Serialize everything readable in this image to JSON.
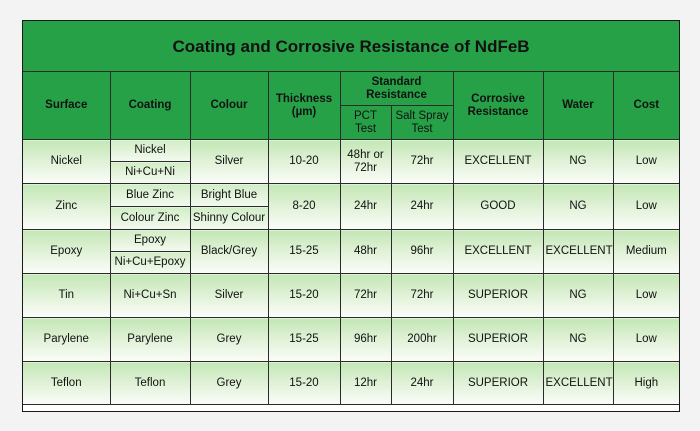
{
  "title": "Coating and Corrosive Resistance of NdFeB",
  "headers": {
    "surface": "Surface",
    "coating": "Coating",
    "colour": "Colour",
    "thickness": "Thickness (µm)",
    "standard_resistance": "Standard Resistance",
    "pct_test": "PCT Test",
    "salt_spray": "Salt Spray Test",
    "corrosive_resistance": "Corrosive Resistance",
    "water": "Water",
    "cost": "Cost"
  },
  "rows": {
    "nickel": {
      "surface": "Nickel",
      "coating_a": "Nickel",
      "coating_b": "Ni+Cu+Ni",
      "colour": "Silver",
      "thickness": "10-20",
      "pct": "48hr or 72hr",
      "salt": "72hr",
      "corrosive": "EXCELLENT",
      "water": "NG",
      "cost": "Low"
    },
    "zinc": {
      "surface": "Zinc",
      "coating_a": "Blue Zinc",
      "coating_b": "Colour Zinc",
      "colour_a": "Bright Blue",
      "colour_b": "Shinny Colour",
      "thickness": "8-20",
      "pct": "24hr",
      "salt": "24hr",
      "corrosive": "GOOD",
      "water": "NG",
      "cost": "Low"
    },
    "epoxy": {
      "surface": "Epoxy",
      "coating_a": "Epoxy",
      "coating_b": "Ni+Cu+Epoxy",
      "colour": "Black/Grey",
      "thickness": "15-25",
      "pct": "48hr",
      "salt": "96hr",
      "corrosive": "EXCELLENT",
      "water": "EXCELLENT",
      "cost": "Medium"
    },
    "tin": {
      "surface": "Tin",
      "coating": "Ni+Cu+Sn",
      "colour": "Silver",
      "thickness": "15-20",
      "pct": "72hr",
      "salt": "72hr",
      "corrosive": "SUPERIOR",
      "water": "NG",
      "cost": "Low"
    },
    "parylene": {
      "surface": "Parylene",
      "coating": "Parylene",
      "colour": "Grey",
      "thickness": "15-25",
      "pct": "96hr",
      "salt": "200hr",
      "corrosive": "SUPERIOR",
      "water": "NG",
      "cost": "Low"
    },
    "teflon": {
      "surface": "Teflon",
      "coating": "Teflon",
      "colour": "Grey",
      "thickness": "15-20",
      "pct": "12hr",
      "salt": "24hr",
      "corrosive": "SUPERIOR",
      "water": "EXCELLENT",
      "cost": "High"
    }
  },
  "colors": {
    "header_green": "#26a148",
    "row_green_light": "#e1f2d8"
  }
}
